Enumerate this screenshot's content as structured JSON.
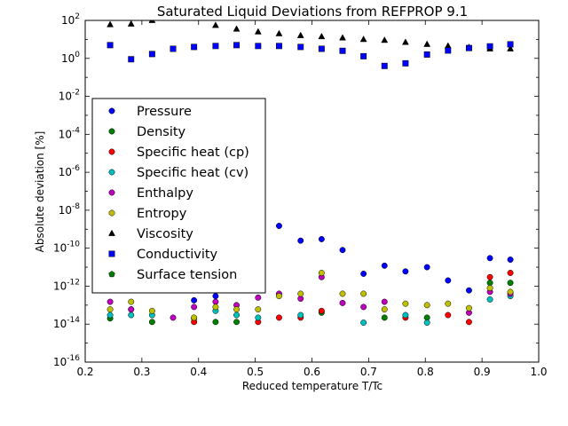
{
  "chart_data": {
    "type": "scatter",
    "title": "Saturated Liquid Deviations from REFPROP 9.1",
    "xlabel": "Reduced temperature T/Tc",
    "ylabel": "Absolute deviation [%]",
    "xlim": [
      0.2,
      1.0
    ],
    "ylim_log10": [
      -16,
      2
    ],
    "yscale": "log",
    "grid": false,
    "legend_position": "center-left",
    "x_ticks": [
      "0.2",
      "0.3",
      "0.4",
      "0.5",
      "0.6",
      "0.7",
      "0.8",
      "0.9",
      "1.0"
    ],
    "y_tick_exponents": [
      "2",
      "0",
      "-2",
      "-4",
      "-6",
      "-8",
      "-10",
      "-12",
      "-14",
      "-16"
    ],
    "y_tick_base": "10",
    "series": [
      {
        "name": "Pressure",
        "marker": "circle",
        "color": "#0000ff",
        "points": [
          [
            0.318,
            8e-13
          ],
          [
            0.392,
            1.8e-13
          ],
          [
            0.43,
            3e-13
          ],
          [
            0.542,
            1.5e-09
          ],
          [
            0.58,
            2.5e-10
          ],
          [
            0.617,
            3e-10
          ],
          [
            0.654,
            8e-11
          ],
          [
            0.691,
            4.5e-12
          ],
          [
            0.728,
            1.2e-11
          ],
          [
            0.765,
            6e-12
          ],
          [
            0.803,
            1e-11
          ],
          [
            0.84,
            2e-12
          ],
          [
            0.877,
            6e-13
          ],
          [
            0.914,
            3e-11
          ],
          [
            0.95,
            2.5e-11
          ]
        ]
      },
      {
        "name": "Density",
        "marker": "circle",
        "color": "#008000",
        "points": [
          [
            0.244,
            2e-14
          ],
          [
            0.281,
            6e-14
          ],
          [
            0.318,
            1.3e-14
          ],
          [
            0.392,
            2e-14
          ],
          [
            0.43,
            1.3e-14
          ],
          [
            0.467,
            1.3e-14
          ],
          [
            0.617,
            4e-14
          ],
          [
            0.728,
            2.2e-14
          ],
          [
            0.803,
            2.2e-14
          ],
          [
            0.914,
            1.5e-12
          ],
          [
            0.95,
            1.5e-12
          ]
        ]
      },
      {
        "name": "Specific heat (cp)",
        "marker": "circle",
        "color": "#ff0000",
        "points": [
          [
            0.392,
            1.3e-14
          ],
          [
            0.505,
            1.3e-14
          ],
          [
            0.542,
            2.2e-14
          ],
          [
            0.58,
            2.2e-14
          ],
          [
            0.617,
            5e-14
          ],
          [
            0.765,
            2.2e-14
          ],
          [
            0.84,
            3e-14
          ],
          [
            0.877,
            1.3e-14
          ],
          [
            0.914,
            3e-12
          ],
          [
            0.95,
            5e-12
          ]
        ]
      },
      {
        "name": "Specific heat (cv)",
        "marker": "circle",
        "color": "#00bfbf",
        "points": [
          [
            0.244,
            3e-14
          ],
          [
            0.281,
            3e-14
          ],
          [
            0.318,
            3e-14
          ],
          [
            0.43,
            5e-14
          ],
          [
            0.467,
            3e-14
          ],
          [
            0.505,
            2.2e-14
          ],
          [
            0.58,
            3e-14
          ],
          [
            0.691,
            1.2e-14
          ],
          [
            0.765,
            3e-14
          ],
          [
            0.803,
            1.2e-14
          ],
          [
            0.914,
            2e-13
          ],
          [
            0.95,
            3e-13
          ]
        ]
      },
      {
        "name": "Enthalpy",
        "marker": "circle",
        "color": "#bf00bf",
        "points": [
          [
            0.244,
            1.5e-13
          ],
          [
            0.281,
            6e-14
          ],
          [
            0.355,
            2.2e-14
          ],
          [
            0.392,
            8e-14
          ],
          [
            0.43,
            1.5e-13
          ],
          [
            0.467,
            1e-13
          ],
          [
            0.505,
            2.5e-13
          ],
          [
            0.542,
            4e-13
          ],
          [
            0.58,
            2.2e-13
          ],
          [
            0.617,
            3e-12
          ],
          [
            0.654,
            1.3e-13
          ],
          [
            0.691,
            8e-14
          ],
          [
            0.728,
            1.5e-13
          ],
          [
            0.877,
            4e-14
          ],
          [
            0.914,
            5e-13
          ],
          [
            0.95,
            4e-13
          ]
        ]
      },
      {
        "name": "Entropy",
        "marker": "circle",
        "color": "#bfbf00",
        "points": [
          [
            0.244,
            6e-14
          ],
          [
            0.281,
            1.5e-13
          ],
          [
            0.318,
            5e-14
          ],
          [
            0.392,
            2.2e-14
          ],
          [
            0.43,
            8e-14
          ],
          [
            0.467,
            6e-14
          ],
          [
            0.505,
            6e-14
          ],
          [
            0.542,
            3e-13
          ],
          [
            0.58,
            4e-13
          ],
          [
            0.617,
            5e-12
          ],
          [
            0.654,
            4e-13
          ],
          [
            0.691,
            4e-13
          ],
          [
            0.728,
            6e-14
          ],
          [
            0.765,
            1.2e-13
          ],
          [
            0.803,
            1e-13
          ],
          [
            0.84,
            1.2e-13
          ],
          [
            0.877,
            7e-14
          ],
          [
            0.914,
            8e-13
          ],
          [
            0.95,
            5e-13
          ]
        ]
      },
      {
        "name": "Viscosity",
        "marker": "triangle",
        "color": "#000000",
        "points": [
          [
            0.244,
            60
          ],
          [
            0.281,
            65
          ],
          [
            0.318,
            100
          ],
          [
            0.43,
            55
          ],
          [
            0.467,
            35
          ],
          [
            0.505,
            25
          ],
          [
            0.542,
            20
          ],
          [
            0.58,
            16
          ],
          [
            0.617,
            14
          ],
          [
            0.654,
            12
          ],
          [
            0.691,
            10
          ],
          [
            0.728,
            9
          ],
          [
            0.765,
            7
          ],
          [
            0.803,
            5.5
          ],
          [
            0.84,
            4.5
          ],
          [
            0.877,
            3.8
          ],
          [
            0.914,
            3.2
          ],
          [
            0.95,
            3.2
          ]
        ]
      },
      {
        "name": "Conductivity",
        "marker": "square",
        "color": "#0000ff",
        "points": [
          [
            0.244,
            5
          ],
          [
            0.281,
            0.9
          ],
          [
            0.318,
            1.7
          ],
          [
            0.355,
            3.2
          ],
          [
            0.392,
            4
          ],
          [
            0.43,
            4.5
          ],
          [
            0.467,
            5
          ],
          [
            0.505,
            4.5
          ],
          [
            0.542,
            4.5
          ],
          [
            0.58,
            4
          ],
          [
            0.617,
            3.2
          ],
          [
            0.654,
            2.5
          ],
          [
            0.691,
            1.3
          ],
          [
            0.728,
            0.4
          ],
          [
            0.765,
            0.55
          ],
          [
            0.803,
            1.6
          ],
          [
            0.84,
            2.6
          ],
          [
            0.877,
            3.5
          ],
          [
            0.914,
            4.3
          ],
          [
            0.95,
            5.5
          ]
        ]
      },
      {
        "name": "Surface tension",
        "marker": "pentagon",
        "color": "#008000",
        "points": []
      }
    ]
  }
}
